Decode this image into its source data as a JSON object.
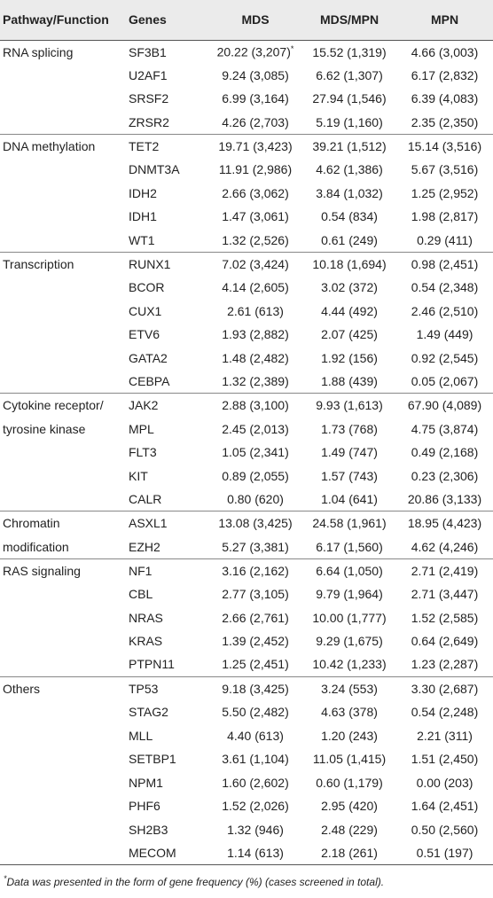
{
  "headers": [
    "Pathway/Function",
    "Genes",
    "MDS",
    "MDS/MPN",
    "MPN"
  ],
  "rows": [
    {
      "pathway": "RNA splicing",
      "gene": "SF3B1",
      "mds": "20.22 (3,207)*",
      "mdsmpn": "15.52 (1,319)",
      "mpn": "4.66 (3,003)",
      "group_start": true
    },
    {
      "pathway": "",
      "gene": "U2AF1",
      "mds": "9.24 (3,085)",
      "mdsmpn": "6.62 (1,307)",
      "mpn": "6.17 (2,832)"
    },
    {
      "pathway": "",
      "gene": "SRSF2",
      "mds": "6.99 (3,164)",
      "mdsmpn": "27.94 (1,546)",
      "mpn": "6.39 (4,083)"
    },
    {
      "pathway": "",
      "gene": "ZRSR2",
      "mds": "4.26 (2,703)",
      "mdsmpn": "5.19 (1,160)",
      "mpn": "2.35 (2,350)"
    },
    {
      "pathway": "DNA methylation",
      "gene": "TET2",
      "mds": "19.71 (3,423)",
      "mdsmpn": "39.21 (1,512)",
      "mpn": "15.14 (3,516)",
      "group_start": true
    },
    {
      "pathway": "",
      "gene": "DNMT3A",
      "mds": "11.91 (2,986)",
      "mdsmpn": "4.62 (1,386)",
      "mpn": "5.67 (3,516)"
    },
    {
      "pathway": "",
      "gene": "IDH2",
      "mds": "2.66 (3,062)",
      "mdsmpn": "3.84 (1,032)",
      "mpn": "1.25 (2,952)"
    },
    {
      "pathway": "",
      "gene": "IDH1",
      "mds": "1.47 (3,061)",
      "mdsmpn": "0.54 (834)",
      "mpn": "1.98 (2,817)"
    },
    {
      "pathway": "",
      "gene": "WT1",
      "mds": "1.32 (2,526)",
      "mdsmpn": "0.61 (249)",
      "mpn": "0.29 (411)"
    },
    {
      "pathway": "Transcription",
      "gene": "RUNX1",
      "mds": "7.02 (3,424)",
      "mdsmpn": "10.18 (1,694)",
      "mpn": "0.98 (2,451)",
      "group_start": true
    },
    {
      "pathway": "",
      "gene": "BCOR",
      "mds": "4.14 (2,605)",
      "mdsmpn": "3.02 (372)",
      "mpn": "0.54 (2,348)"
    },
    {
      "pathway": "",
      "gene": "CUX1",
      "mds": "2.61 (613)",
      "mdsmpn": "4.44 (492)",
      "mpn": "2.46 (2,510)"
    },
    {
      "pathway": "",
      "gene": "ETV6",
      "mds": "1.93 (2,882)",
      "mdsmpn": "2.07 (425)",
      "mpn": "1.49 (449)"
    },
    {
      "pathway": "",
      "gene": "GATA2",
      "mds": "1.48 (2,482)",
      "mdsmpn": "1.92 (156)",
      "mpn": "0.92 (2,545)"
    },
    {
      "pathway": "",
      "gene": "CEBPA",
      "mds": "1.32 (2,389)",
      "mdsmpn": "1.88 (439)",
      "mpn": "0.05 (2,067)"
    },
    {
      "pathway": "Cytokine receptor/",
      "gene": "JAK2",
      "mds": "2.88 (3,100)",
      "mdsmpn": "9.93 (1,613)",
      "mpn": "67.90 (4,089)",
      "group_start": true
    },
    {
      "pathway": "tyrosine kinase",
      "gene": "MPL",
      "mds": "2.45 (2,013)",
      "mdsmpn": "1.73 (768)",
      "mpn": "4.75 (3,874)"
    },
    {
      "pathway": "",
      "gene": "FLT3",
      "mds": "1.05 (2,341)",
      "mdsmpn": "1.49 (747)",
      "mpn": "0.49 (2,168)"
    },
    {
      "pathway": "",
      "gene": "KIT",
      "mds": "0.89 (2,055)",
      "mdsmpn": "1.57 (743)",
      "mpn": "0.23 (2,306)"
    },
    {
      "pathway": "",
      "gene": "CALR",
      "mds": "0.80 (620)",
      "mdsmpn": "1.04 (641)",
      "mpn": "20.86 (3,133)"
    },
    {
      "pathway": "Chromatin",
      "gene": "ASXL1",
      "mds": "13.08 (3,425)",
      "mdsmpn": "24.58 (1,961)",
      "mpn": "18.95 (4,423)",
      "group_start": true
    },
    {
      "pathway": "modification",
      "gene": "EZH2",
      "mds": "5.27 (3,381)",
      "mdsmpn": "6.17 (1,560)",
      "mpn": "4.62 (4,246)"
    },
    {
      "pathway": "RAS signaling",
      "gene": "NF1",
      "mds": "3.16 (2,162)",
      "mdsmpn": "6.64 (1,050)",
      "mpn": "2.71 (2,419)",
      "group_start": true
    },
    {
      "pathway": "",
      "gene": "CBL",
      "mds": "2.77 (3,105)",
      "mdsmpn": "9.79 (1,964)",
      "mpn": "2.71 (3,447)"
    },
    {
      "pathway": "",
      "gene": "NRAS",
      "mds": "2.66 (2,761)",
      "mdsmpn": "10.00 (1,777)",
      "mpn": "1.52 (2,585)"
    },
    {
      "pathway": "",
      "gene": "KRAS",
      "mds": "1.39 (2,452)",
      "mdsmpn": "9.29 (1,675)",
      "mpn": "0.64 (2,649)"
    },
    {
      "pathway": "",
      "gene": "PTPN11",
      "mds": "1.25 (2,451)",
      "mdsmpn": "10.42 (1,233)",
      "mpn": "1.23 (2,287)"
    },
    {
      "pathway": "Others",
      "gene": "TP53",
      "mds": "9.18 (3,425)",
      "mdsmpn": "3.24 (553)",
      "mpn": "3.30 (2,687)",
      "group_start": true
    },
    {
      "pathway": "",
      "gene": "STAG2",
      "mds": "5.50 (2,482)",
      "mdsmpn": "4.63 (378)",
      "mpn": "0.54 (2,248)"
    },
    {
      "pathway": "",
      "gene": "MLL",
      "mds": "4.40 (613)",
      "mdsmpn": "1.20 (243)",
      "mpn": "2.21 (311)"
    },
    {
      "pathway": "",
      "gene": "SETBP1",
      "mds": "3.61 (1,104)",
      "mdsmpn": "11.05 (1,415)",
      "mpn": "1.51 (2,450)"
    },
    {
      "pathway": "",
      "gene": "NPM1",
      "mds": "1.60 (2,602)",
      "mdsmpn": "0.60 (1,179)",
      "mpn": "0.00 (203)"
    },
    {
      "pathway": "",
      "gene": "PHF6",
      "mds": "1.52 (2,026)",
      "mdsmpn": "2.95 (420)",
      "mpn": "1.64 (2,451)"
    },
    {
      "pathway": "",
      "gene": "SH2B3",
      "mds": "1.32 (946)",
      "mdsmpn": "2.48 (229)",
      "mpn": "0.50 (2,560)"
    },
    {
      "pathway": "",
      "gene": "MECOM",
      "mds": "1.14 (613)",
      "mdsmpn": "2.18 (261)",
      "mpn": "0.51 (197)",
      "last": true
    }
  ],
  "footnote": "*Data was presented in the form of gene frequency (%) (cases screened in total)."
}
